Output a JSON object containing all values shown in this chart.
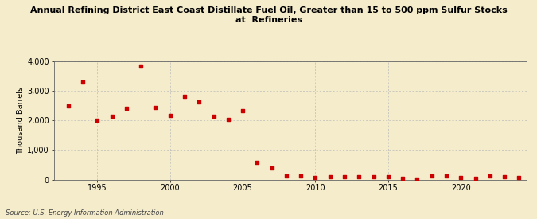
{
  "title": "Annual Refining District East Coast Distillate Fuel Oil, Greater than 15 to 500 ppm Sulfur Stocks\nat  Refineries",
  "ylabel": "Thousand Barrels",
  "source": "Source: U.S. Energy Information Administration",
  "background_color": "#f5eccb",
  "marker_color": "#cc0000",
  "grid_color": "#bbbbbb",
  "xlim": [
    1992,
    2024.5
  ],
  "ylim": [
    0,
    4000
  ],
  "yticks": [
    0,
    1000,
    2000,
    3000,
    4000
  ],
  "xticks": [
    1995,
    2000,
    2005,
    2010,
    2015,
    2020
  ],
  "years": [
    1993,
    1994,
    1995,
    1996,
    1997,
    1998,
    1999,
    2000,
    2001,
    2002,
    2003,
    2004,
    2005,
    2006,
    2007,
    2008,
    2009,
    2010,
    2011,
    2012,
    2013,
    2014,
    2015,
    2016,
    2017,
    2018,
    2019,
    2020,
    2021,
    2022,
    2023,
    2024
  ],
  "values": [
    2480,
    3300,
    2010,
    2150,
    2400,
    3830,
    2450,
    2180,
    2820,
    2630,
    2130,
    2040,
    2320,
    590,
    380,
    120,
    110,
    80,
    100,
    100,
    90,
    90,
    90,
    50,
    20,
    130,
    130,
    80,
    50,
    110,
    90,
    70
  ]
}
